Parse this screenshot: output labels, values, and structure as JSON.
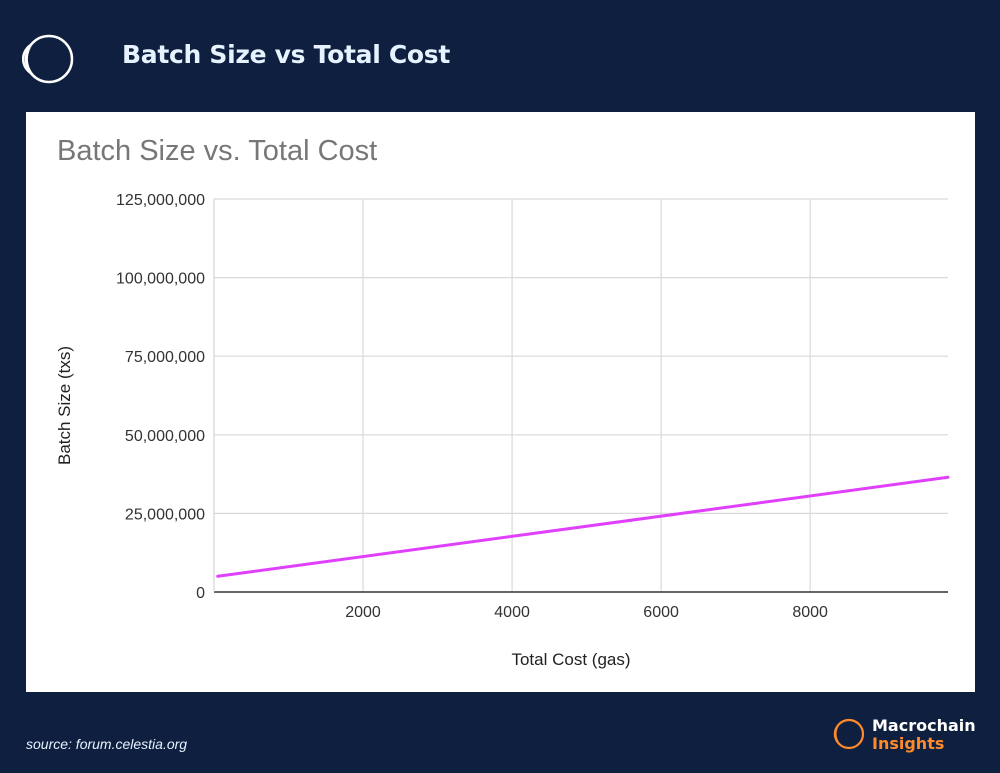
{
  "header": {
    "title": "Batch Size vs Total Cost",
    "logo_icon": "crescent-ring-icon"
  },
  "source": "source: forum.celestia.org",
  "brand": {
    "line1": "Macrochain",
    "line2": "Insights",
    "icon": "crescent-ring-icon",
    "line1_color": "#ffffff",
    "line2_color": "#ff8a2a"
  },
  "colors": {
    "background": "#0f1f3f",
    "series": "#e040fb",
    "grid": "#d9d9d9"
  },
  "chart_data": {
    "type": "line",
    "title": "Batch Size vs. Total Cost",
    "xlabel": "Total Cost (gas)",
    "ylabel": "Batch Size (txs)",
    "xlim": [
      0,
      9850
    ],
    "ylim": [
      0,
      125000000
    ],
    "x_ticks": [
      2000,
      4000,
      6000,
      8000
    ],
    "x_tick_labels": [
      "2000",
      "4000",
      "6000",
      "8000"
    ],
    "y_ticks": [
      0,
      25000000,
      50000000,
      75000000,
      100000000,
      125000000
    ],
    "y_tick_labels": [
      "0",
      "25,000,000",
      "50,000,000",
      "75,000,000",
      "100,000,000",
      "125,000,000"
    ],
    "grid": true,
    "legend": "none",
    "series": [
      {
        "x": [
          50,
          9850
        ],
        "y": [
          5000000,
          36500000
        ],
        "color": "#e040fb"
      }
    ]
  }
}
